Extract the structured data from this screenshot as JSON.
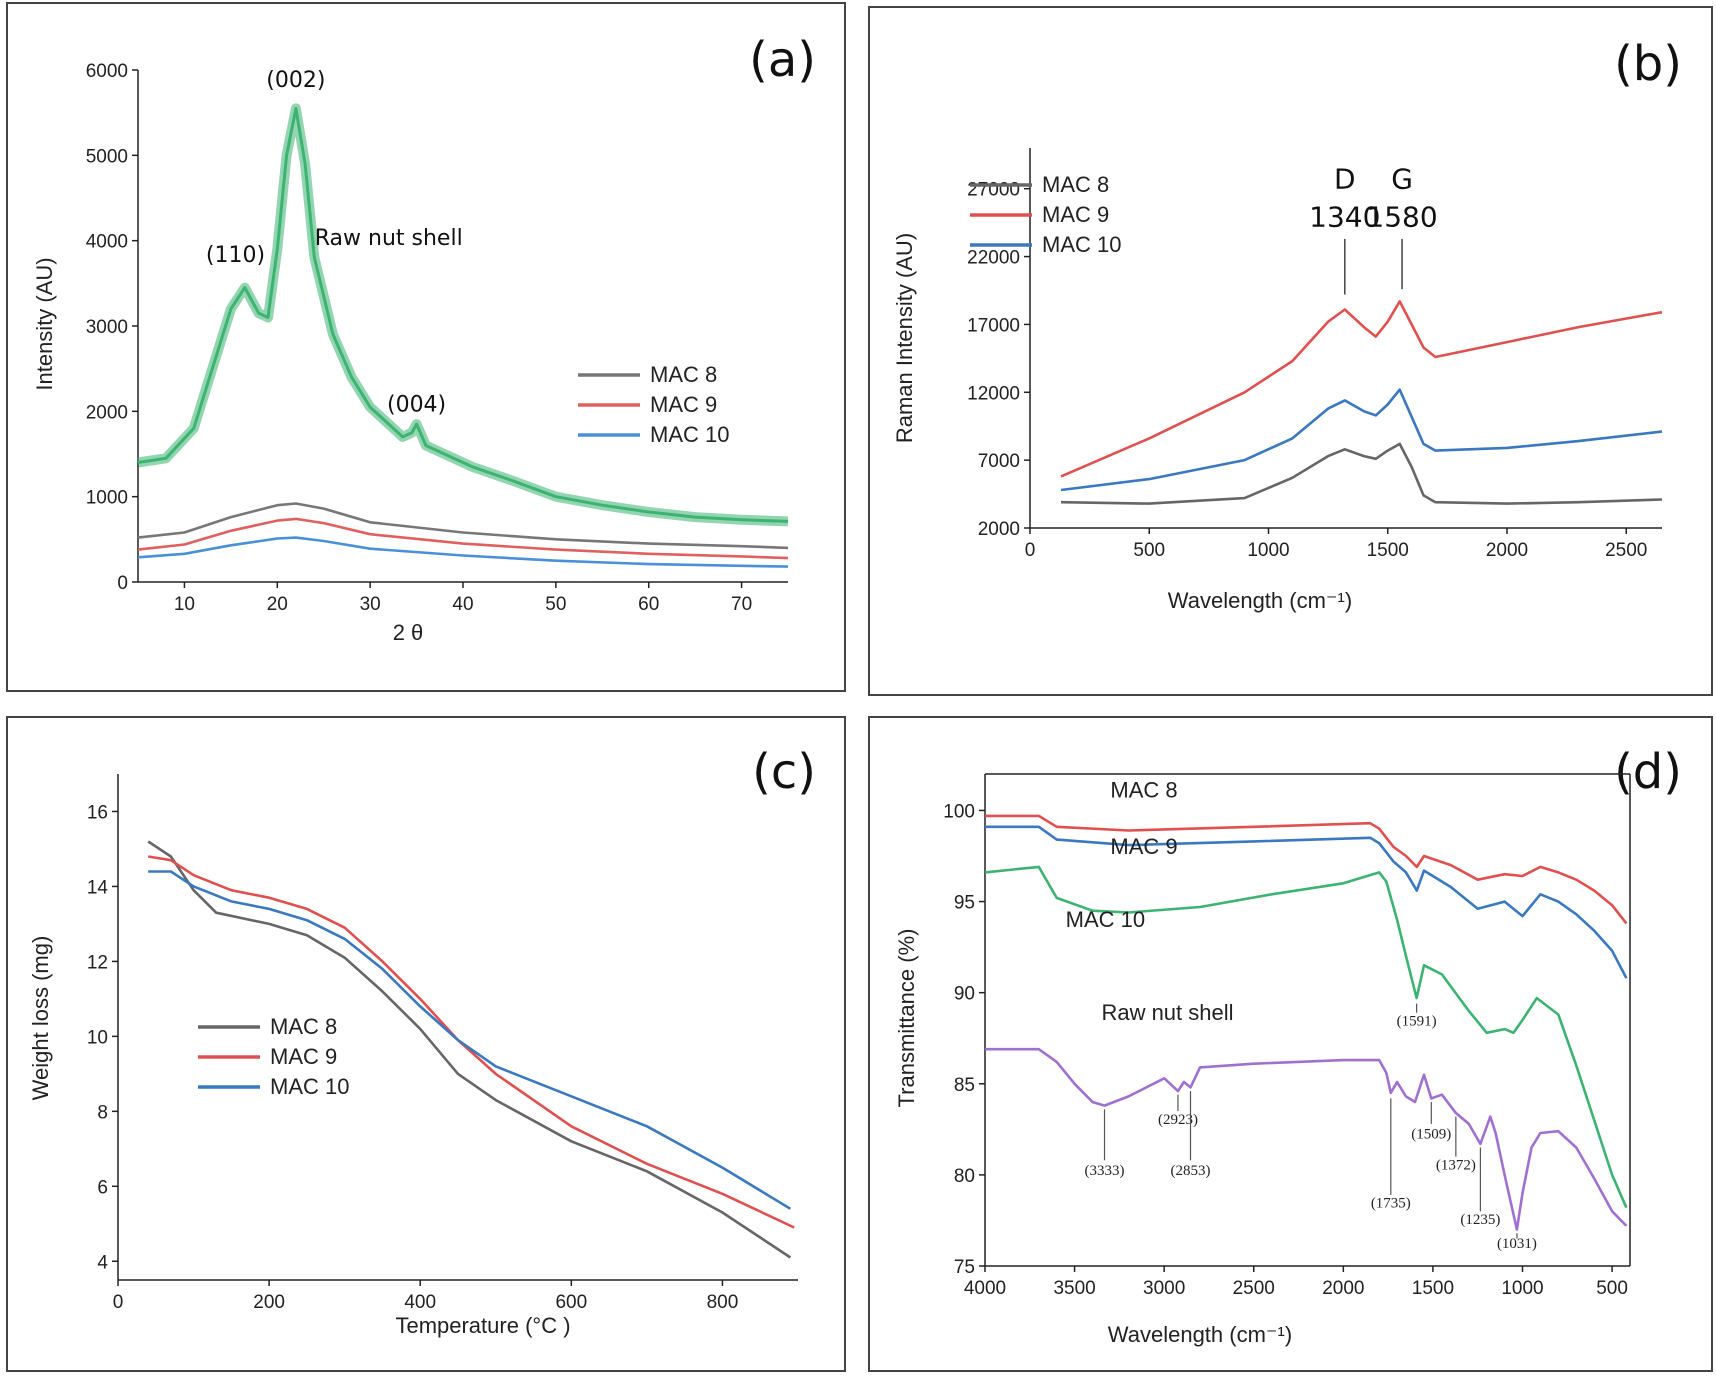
{
  "chart_data": [
    {
      "panel": "(a)",
      "type": "line",
      "xlabel": "2 θ",
      "ylabel": "Intensity (AU)",
      "xlim": [
        5,
        75
      ],
      "ylim": [
        0,
        6000
      ],
      "xticks": [
        10,
        20,
        30,
        40,
        50,
        60,
        70
      ],
      "yticks": [
        0,
        1000,
        2000,
        3000,
        4000,
        5000,
        6000
      ],
      "annotations": [
        {
          "text": "(002)",
          "x": 22,
          "y": 5800
        },
        {
          "text": "(110)",
          "x": 15.5,
          "y": 3750
        },
        {
          "text": "(004)",
          "x": 35,
          "y": 2000
        },
        {
          "text": "Raw nut shell",
          "x": 32,
          "y": 3950
        }
      ],
      "legend": {
        "position": "right",
        "entries": [
          "MAC 8",
          "MAC 9",
          "MAC 10"
        ]
      },
      "series": [
        {
          "name": "Raw nut shell",
          "color": "#3cb371",
          "noisy": true,
          "x": [
            5,
            8,
            11,
            13,
            15,
            16.5,
            18,
            19,
            20,
            21,
            22,
            23,
            24,
            26,
            28,
            30,
            32,
            33.5,
            34.5,
            35,
            36,
            38,
            41,
            45,
            50,
            55,
            60,
            65,
            70,
            75
          ],
          "y": [
            1400,
            1450,
            1800,
            2500,
            3200,
            3450,
            3150,
            3100,
            3900,
            5000,
            5550,
            4900,
            3800,
            2900,
            2400,
            2050,
            1850,
            1700,
            1750,
            1850,
            1600,
            1500,
            1350,
            1200,
            1000,
            900,
            820,
            760,
            730,
            710
          ]
        },
        {
          "name": "MAC 8",
          "color": "#777777",
          "x": [
            5,
            10,
            15,
            20,
            22,
            25,
            30,
            40,
            50,
            60,
            70,
            75
          ],
          "y": [
            520,
            580,
            760,
            900,
            920,
            860,
            700,
            580,
            500,
            450,
            420,
            400
          ]
        },
        {
          "name": "MAC 9",
          "color": "#e06060",
          "x": [
            5,
            10,
            15,
            20,
            22,
            25,
            30,
            40,
            50,
            60,
            70,
            75
          ],
          "y": [
            380,
            440,
            600,
            720,
            740,
            690,
            560,
            450,
            380,
            330,
            300,
            280
          ]
        },
        {
          "name": "MAC 10",
          "color": "#4a90d9",
          "x": [
            5,
            10,
            15,
            20,
            22,
            25,
            30,
            40,
            50,
            60,
            70,
            75
          ],
          "y": [
            290,
            330,
            430,
            510,
            520,
            480,
            390,
            310,
            250,
            210,
            190,
            180
          ]
        }
      ]
    },
    {
      "panel": "(b)",
      "type": "line",
      "xlabel": "Wavelength (cm⁻¹)",
      "ylabel": "Raman Intensity (AU)",
      "xlim": [
        0,
        2650
      ],
      "ylim": [
        2000,
        30000
      ],
      "xticks": [
        0,
        500,
        1000,
        1500,
        2000,
        2500
      ],
      "yticks": [
        2000,
        7000,
        12000,
        17000,
        22000,
        27000
      ],
      "annotations": [
        {
          "text": "D",
          "x": 1320,
          "y": 27000
        },
        {
          "text": "1340",
          "x": 1320,
          "y": 24200
        },
        {
          "text": "G",
          "x": 1560,
          "y": 27000
        },
        {
          "text": "1580",
          "x": 1560,
          "y": 24200
        }
      ],
      "legend": {
        "position": "top-left",
        "entries": [
          "MAC 8",
          "MAC 9",
          "MAC 10"
        ]
      },
      "series": [
        {
          "name": "MAC 8",
          "color": "#666666",
          "x": [
            130,
            500,
            900,
            1100,
            1250,
            1320,
            1400,
            1450,
            1500,
            1550,
            1600,
            1650,
            1700,
            2000,
            2300,
            2650
          ],
          "y": [
            3900,
            3800,
            4200,
            5700,
            7300,
            7800,
            7300,
            7100,
            7700,
            8200,
            6500,
            4400,
            3900,
            3800,
            3900,
            4100
          ]
        },
        {
          "name": "MAC 9",
          "color": "#e05050",
          "x": [
            130,
            500,
            900,
            1100,
            1250,
            1320,
            1400,
            1450,
            1500,
            1550,
            1600,
            1650,
            1700,
            2000,
            2300,
            2650
          ],
          "y": [
            5800,
            8600,
            12000,
            14300,
            17200,
            18100,
            16800,
            16100,
            17200,
            18700,
            17000,
            15300,
            14600,
            15700,
            16800,
            17900
          ]
        },
        {
          "name": "MAC 10",
          "color": "#3a78c0",
          "x": [
            130,
            500,
            900,
            1100,
            1250,
            1320,
            1400,
            1450,
            1500,
            1550,
            1600,
            1650,
            1700,
            2000,
            2300,
            2650
          ],
          "y": [
            4800,
            5600,
            7000,
            8600,
            10800,
            11400,
            10600,
            10300,
            11100,
            12200,
            10200,
            8200,
            7700,
            7900,
            8400,
            9100
          ]
        }
      ]
    },
    {
      "panel": "(c)",
      "type": "line",
      "xlabel": "Temperature (°C )",
      "ylabel": "Weight loss (mg)",
      "xlim": [
        0,
        900
      ],
      "ylim": [
        3.5,
        17
      ],
      "xticks": [
        0,
        200,
        400,
        600,
        800
      ],
      "yticks": [
        4,
        6,
        8,
        10,
        12,
        14,
        16
      ],
      "legend": {
        "position": "bottom-left",
        "entries": [
          "MAC 8",
          "MAC 9",
          "MAC 10"
        ]
      },
      "series": [
        {
          "name": "MAC 8",
          "color": "#666666",
          "x": [
            40,
            70,
            100,
            130,
            200,
            250,
            300,
            350,
            400,
            450,
            500,
            600,
            700,
            800,
            890
          ],
          "y": [
            15.2,
            14.8,
            13.9,
            13.3,
            13.0,
            12.7,
            12.1,
            11.2,
            10.2,
            9.0,
            8.3,
            7.2,
            6.4,
            5.3,
            4.1
          ]
        },
        {
          "name": "MAC 9",
          "color": "#e05050",
          "x": [
            40,
            70,
            100,
            150,
            200,
            250,
            300,
            350,
            400,
            450,
            500,
            600,
            700,
            800,
            895
          ],
          "y": [
            14.8,
            14.7,
            14.3,
            13.9,
            13.7,
            13.4,
            12.9,
            12.0,
            11.0,
            9.9,
            9.0,
            7.6,
            6.6,
            5.8,
            4.9
          ]
        },
        {
          "name": "MAC 10",
          "color": "#3a78c0",
          "x": [
            40,
            70,
            100,
            150,
            200,
            250,
            300,
            350,
            400,
            450,
            500,
            600,
            700,
            800,
            890
          ],
          "y": [
            14.4,
            14.4,
            14.0,
            13.6,
            13.4,
            13.1,
            12.6,
            11.8,
            10.8,
            9.9,
            9.2,
            8.4,
            7.6,
            6.5,
            5.4
          ]
        }
      ]
    },
    {
      "panel": "(d)",
      "type": "line",
      "xlabel": "Wavelength (cm⁻¹)",
      "ylabel": "Transmittance (%)",
      "xlim": [
        4000,
        400
      ],
      "ylim": [
        75,
        102
      ],
      "x_reversed": true,
      "xticks": [
        4000,
        3500,
        3000,
        2500,
        2000,
        1500,
        1000,
        500
      ],
      "yticks": [
        75,
        80,
        85,
        90,
        95,
        100
      ],
      "annotations": [
        {
          "text": "MAC 8",
          "x": 3300,
          "y": 100.7
        },
        {
          "text": "MAC 9",
          "x": 3300,
          "y": 97.6
        },
        {
          "text": "MAC 10",
          "x": 3550,
          "y": 93.6
        },
        {
          "text": "Raw nut shell",
          "x": 3350,
          "y": 88.5
        },
        {
          "text": "(3333)",
          "x": 3333,
          "y": 80.0
        },
        {
          "text": "(2923)",
          "x": 2923,
          "y": 82.8
        },
        {
          "text": "(2853)",
          "x": 2853,
          "y": 80.0
        },
        {
          "text": "(1735)",
          "x": 1735,
          "y": 78.2
        },
        {
          "text": "(1591)",
          "x": 1591,
          "y": 88.2
        },
        {
          "text": "(1509)",
          "x": 1509,
          "y": 82.0
        },
        {
          "text": "(1372)",
          "x": 1372,
          "y": 80.3
        },
        {
          "text": "(1235)",
          "x": 1235,
          "y": 77.3
        },
        {
          "text": "(1031)",
          "x": 1031,
          "y": 76.0
        }
      ],
      "series": [
        {
          "name": "MAC 8",
          "color": "#e05050",
          "x": [
            4000,
            3700,
            3600,
            3200,
            2500,
            1850,
            1800,
            1720,
            1650,
            1590,
            1550,
            1400,
            1250,
            1100,
            1000,
            900,
            800,
            700,
            600,
            500,
            420
          ],
          "y": [
            99.7,
            99.7,
            99.1,
            98.9,
            99.1,
            99.3,
            99.0,
            98.0,
            97.5,
            96.9,
            97.5,
            97.0,
            96.2,
            96.5,
            96.4,
            96.9,
            96.6,
            96.2,
            95.6,
            94.8,
            93.8
          ]
        },
        {
          "name": "MAC 9",
          "color": "#3a78c0",
          "x": [
            4000,
            3700,
            3600,
            3200,
            2500,
            1850,
            1800,
            1720,
            1650,
            1590,
            1550,
            1400,
            1250,
            1100,
            1000,
            900,
            800,
            700,
            600,
            500,
            420
          ],
          "y": [
            99.1,
            99.1,
            98.4,
            98.1,
            98.3,
            98.5,
            98.2,
            97.2,
            96.6,
            95.6,
            96.7,
            95.8,
            94.6,
            95.0,
            94.2,
            95.4,
            95.0,
            94.3,
            93.4,
            92.3,
            90.8
          ]
        },
        {
          "name": "MAC 10",
          "color": "#3cb371",
          "x": [
            4000,
            3700,
            3600,
            3400,
            3200,
            2800,
            2400,
            2000,
            1800,
            1760,
            1700,
            1650,
            1591,
            1550,
            1450,
            1300,
            1200,
            1100,
            1050,
            1000,
            920,
            800,
            700,
            600,
            500,
            420
          ],
          "y": [
            96.6,
            96.9,
            95.2,
            94.5,
            94.4,
            94.7,
            95.4,
            96.0,
            96.6,
            96.1,
            94.0,
            92.0,
            89.7,
            91.5,
            91.0,
            89.0,
            87.8,
            88.0,
            87.8,
            88.5,
            89.7,
            88.8,
            86.0,
            83.0,
            80.0,
            78.2
          ]
        },
        {
          "name": "Raw nut shell",
          "color": "#a070d0",
          "x": [
            4000,
            3700,
            3600,
            3500,
            3400,
            3333,
            3200,
            3000,
            2923,
            2890,
            2853,
            2800,
            2500,
            2000,
            1800,
            1760,
            1735,
            1700,
            1650,
            1600,
            1550,
            1509,
            1450,
            1372,
            1300,
            1235,
            1180,
            1150,
            1100,
            1031,
            1000,
            950,
            900,
            800,
            700,
            600,
            500,
            420
          ],
          "y": [
            86.9,
            86.9,
            86.2,
            85.0,
            84.0,
            83.8,
            84.3,
            85.3,
            84.6,
            85.1,
            84.8,
            85.9,
            86.1,
            86.3,
            86.3,
            85.6,
            84.5,
            85.1,
            84.3,
            84.0,
            85.5,
            84.2,
            84.4,
            83.4,
            82.8,
            81.7,
            83.2,
            82.3,
            80.0,
            77.0,
            79.0,
            81.5,
            82.3,
            82.4,
            81.5,
            79.8,
            78.0,
            77.2
          ]
        }
      ]
    }
  ]
}
